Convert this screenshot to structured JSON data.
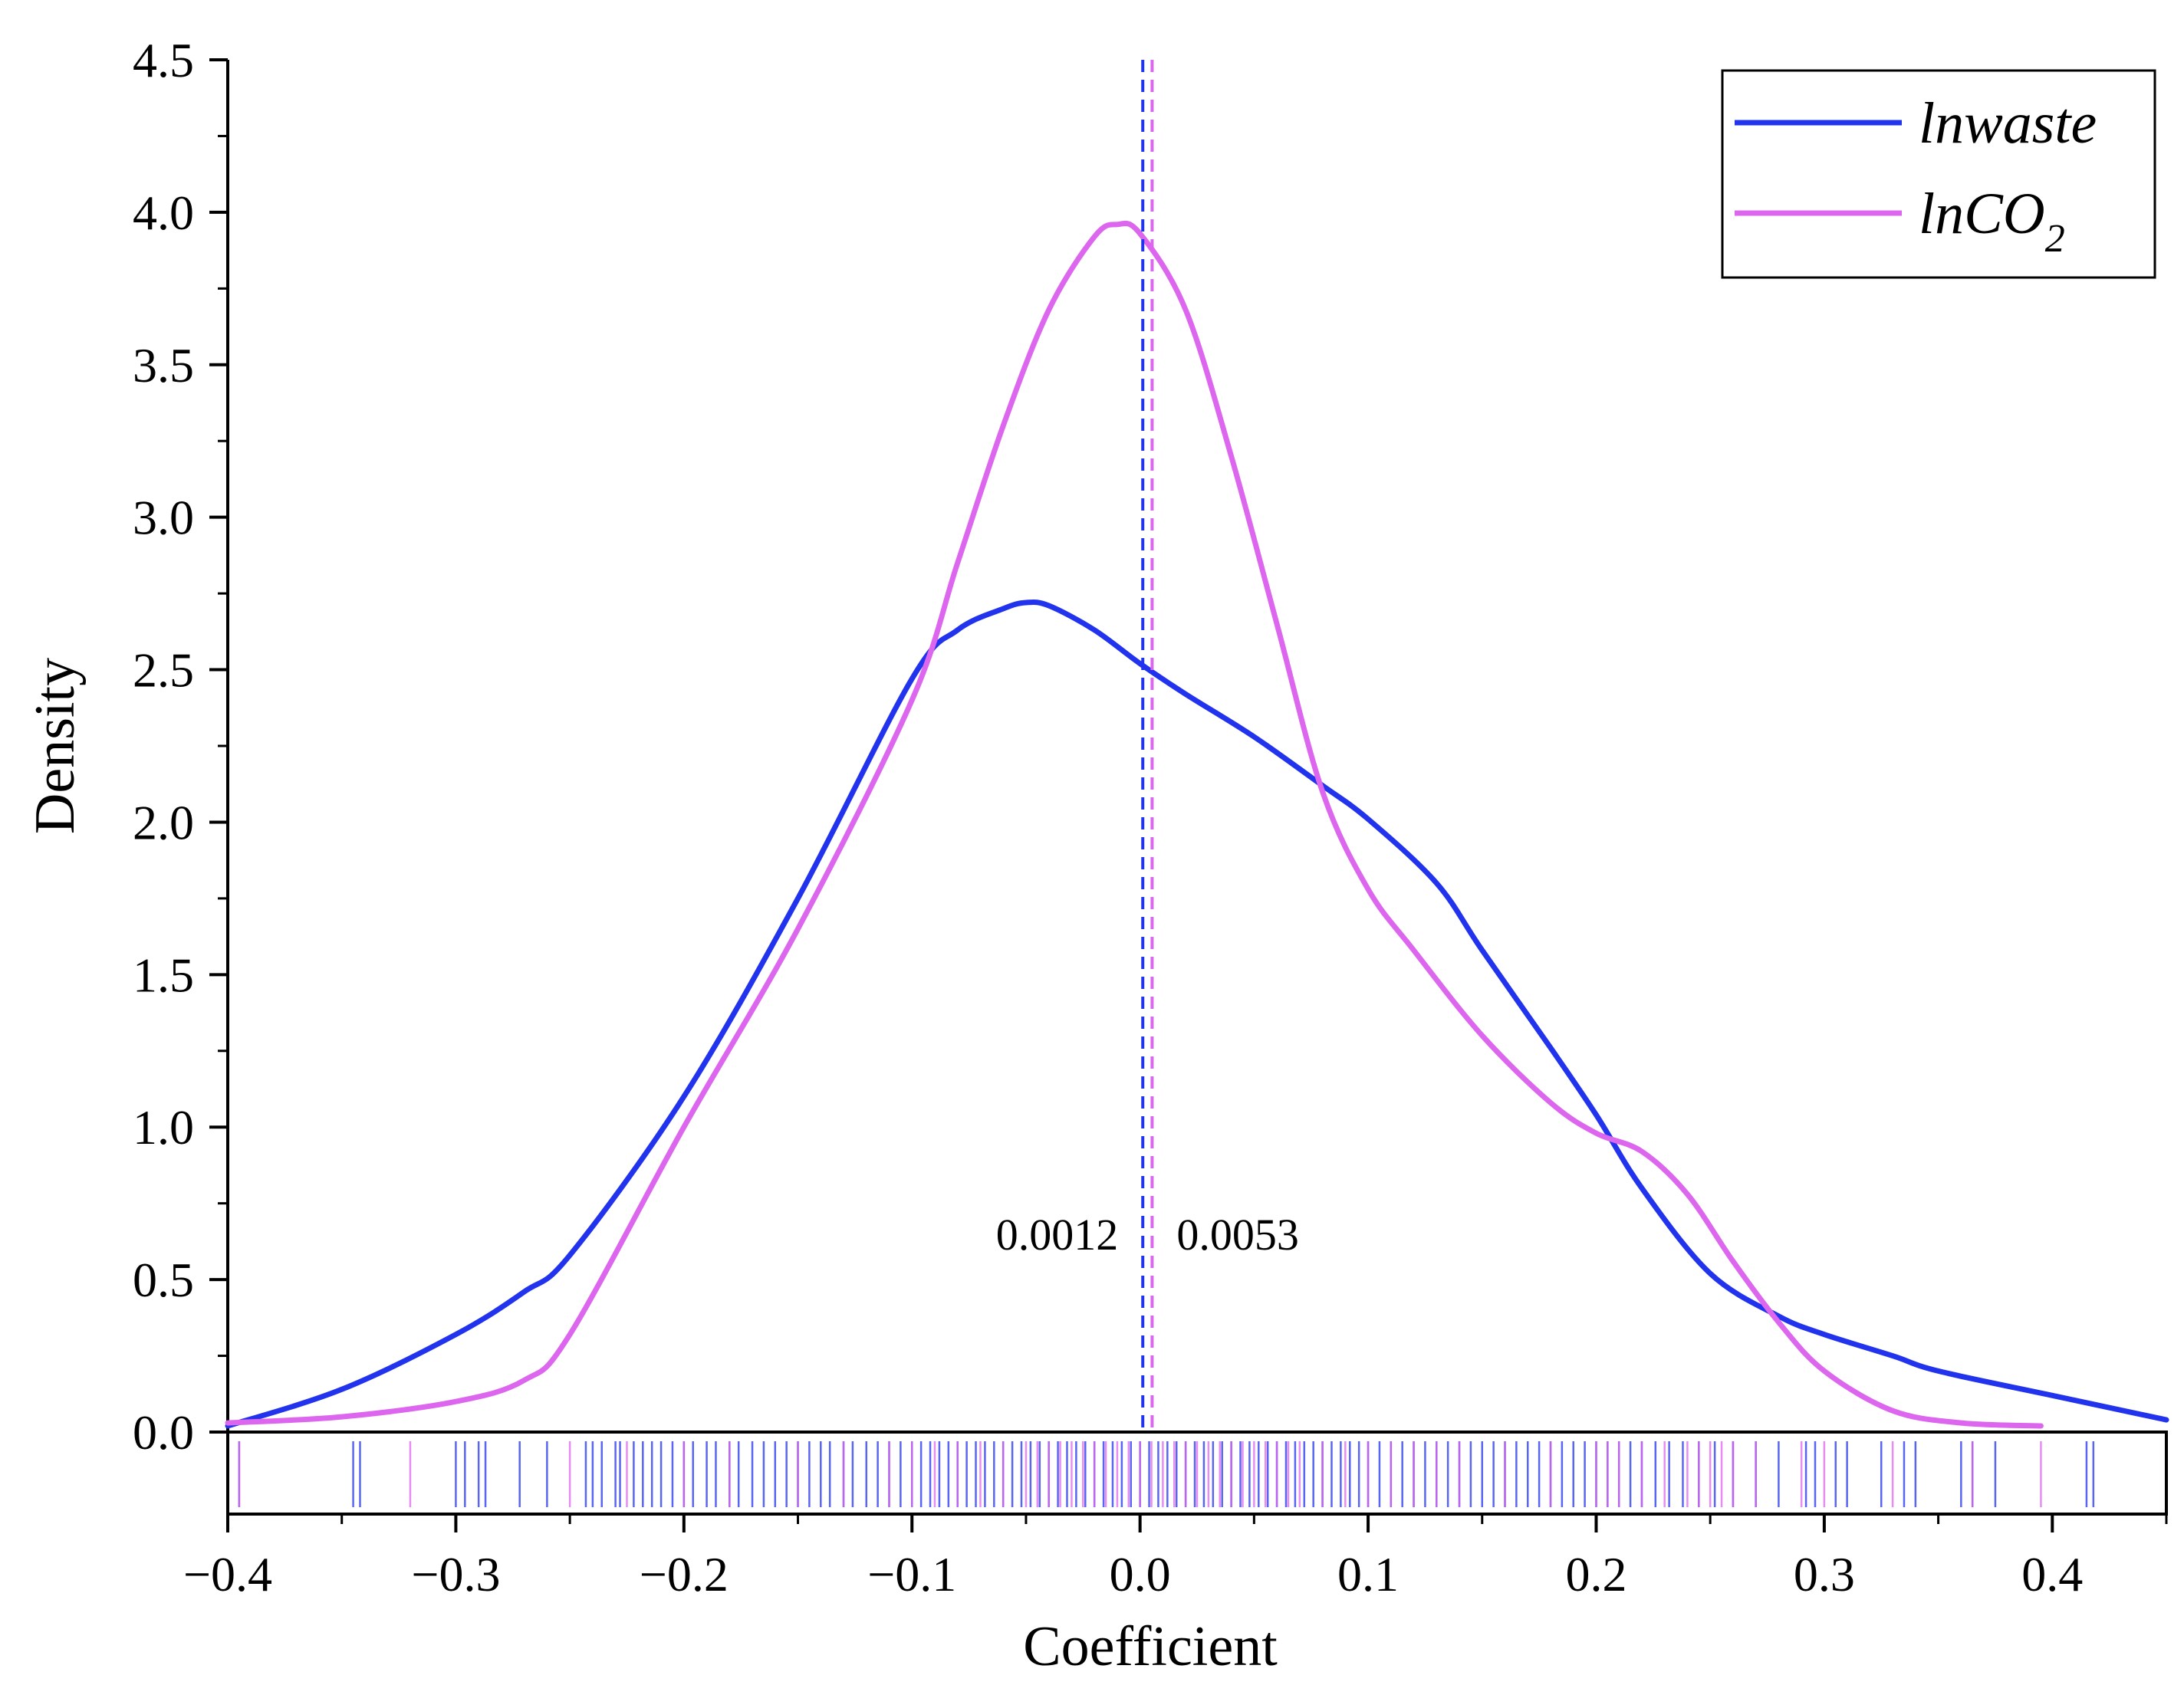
{
  "chart_data": {
    "type": "line",
    "subtype": "kernel-density-with-rug",
    "xlabel": "Coefficient",
    "ylabel": "Density",
    "xlim": [
      -0.4,
      0.45
    ],
    "ylim": [
      0,
      4.5
    ],
    "x_ticks": [
      -0.4,
      -0.3,
      -0.2,
      -0.1,
      0.0,
      0.1,
      0.2,
      0.3,
      0.4
    ],
    "x_tick_labels": [
      "−0.4",
      "−0.3",
      "−0.2",
      "−0.1",
      "0.0",
      "0.1",
      "0.2",
      "0.3",
      "0.4"
    ],
    "y_ticks": [
      0,
      0.5,
      1.0,
      1.5,
      2.0,
      2.5,
      3.0,
      3.5,
      4.0,
      4.5
    ],
    "y_tick_labels": [
      "0.0",
      "0.5",
      "1.0",
      "1.5",
      "2.0",
      "2.5",
      "3.0",
      "3.5",
      "4.0",
      "4.5"
    ],
    "grid": false,
    "legend_position": "top-right",
    "legend": [
      {
        "name": "lnwaste",
        "prefix": "lnwaste",
        "subscript": ""
      },
      {
        "name": "lnCO2",
        "prefix": "lnCO",
        "subscript": "2"
      }
    ],
    "series": [
      {
        "name": "lnwaste",
        "color": "#2233ee",
        "x": [
          -0.4,
          -0.35,
          -0.3,
          -0.27,
          -0.25,
          -0.2,
          -0.15,
          -0.1,
          -0.08,
          -0.06,
          -0.05,
          -0.04,
          -0.02,
          0.0,
          0.02,
          0.05,
          0.08,
          0.1,
          0.13,
          0.15,
          0.18,
          0.2,
          0.22,
          0.25,
          0.28,
          0.3,
          0.33,
          0.35,
          0.4,
          0.45
        ],
        "y": [
          0.02,
          0.14,
          0.32,
          0.46,
          0.58,
          1.1,
          1.75,
          2.47,
          2.63,
          2.7,
          2.72,
          2.71,
          2.63,
          2.52,
          2.42,
          2.28,
          2.12,
          2.01,
          1.8,
          1.58,
          1.26,
          1.04,
          0.8,
          0.52,
          0.38,
          0.32,
          0.25,
          0.2,
          0.12,
          0.04
        ]
      },
      {
        "name": "lnCO2",
        "color": "#dd66ee",
        "x": [
          -0.4,
          -0.35,
          -0.3,
          -0.27,
          -0.25,
          -0.2,
          -0.15,
          -0.1,
          -0.08,
          -0.06,
          -0.04,
          -0.02,
          -0.01,
          0.0,
          0.02,
          0.04,
          0.06,
          0.08,
          0.1,
          0.12,
          0.15,
          0.18,
          0.2,
          0.22,
          0.24,
          0.26,
          0.28,
          0.3,
          0.33,
          0.36,
          0.395
        ],
        "y": [
          0.03,
          0.05,
          0.1,
          0.17,
          0.32,
          1.0,
          1.65,
          2.4,
          2.85,
          3.3,
          3.68,
          3.92,
          3.96,
          3.93,
          3.68,
          3.2,
          2.65,
          2.1,
          1.78,
          1.58,
          1.3,
          1.08,
          0.98,
          0.92,
          0.78,
          0.56,
          0.36,
          0.2,
          0.07,
          0.03,
          0.02
        ]
      }
    ],
    "vlines": [
      {
        "series": "lnwaste",
        "x": 0.0012,
        "label": "0.0012",
        "style": "dashed"
      },
      {
        "series": "lnCO2",
        "x": 0.0053,
        "label": "0.0053",
        "style": "dashed"
      }
    ],
    "rug": {
      "lnwaste": [
        -0.395,
        -0.345,
        -0.342,
        -0.3,
        -0.296,
        -0.29,
        -0.287,
        -0.272,
        -0.26,
        -0.243,
        -0.24,
        -0.236,
        -0.23,
        -0.228,
        -0.222,
        -0.218,
        -0.214,
        -0.21,
        -0.205,
        -0.2,
        -0.196,
        -0.19,
        -0.186,
        -0.18,
        -0.176,
        -0.17,
        -0.165,
        -0.16,
        -0.155,
        -0.15,
        -0.145,
        -0.14,
        -0.136,
        -0.13,
        -0.126,
        -0.12,
        -0.115,
        -0.11,
        -0.105,
        -0.1,
        -0.096,
        -0.092,
        -0.088,
        -0.084,
        -0.08,
        -0.076,
        -0.072,
        -0.068,
        -0.064,
        -0.06,
        -0.056,
        -0.052,
        -0.048,
        -0.044,
        -0.04,
        -0.036,
        -0.032,
        -0.028,
        -0.024,
        -0.02,
        -0.016,
        -0.012,
        -0.008,
        -0.004,
        0.0,
        0.004,
        0.008,
        0.012,
        0.016,
        0.02,
        0.024,
        0.028,
        0.032,
        0.036,
        0.04,
        0.044,
        0.048,
        0.052,
        0.056,
        0.06,
        0.064,
        0.068,
        0.072,
        0.076,
        0.08,
        0.084,
        0.088,
        0.092,
        0.096,
        0.1,
        0.105,
        0.11,
        0.115,
        0.12,
        0.125,
        0.13,
        0.135,
        0.14,
        0.145,
        0.15,
        0.155,
        0.16,
        0.165,
        0.17,
        0.175,
        0.18,
        0.185,
        0.19,
        0.195,
        0.2,
        0.205,
        0.21,
        0.215,
        0.22,
        0.226,
        0.232,
        0.238,
        0.245,
        0.252,
        0.26,
        0.27,
        0.28,
        0.292,
        0.296,
        0.305,
        0.31,
        0.325,
        0.335,
        0.34,
        0.36,
        0.365,
        0.375,
        0.415,
        0.418
      ],
      "lnCO2": [
        -0.395,
        -0.32,
        -0.25,
        -0.225,
        -0.2,
        -0.18,
        -0.15,
        -0.13,
        -0.11,
        -0.1,
        -0.09,
        -0.08,
        -0.07,
        -0.06,
        -0.05,
        -0.045,
        -0.04,
        -0.035,
        -0.03,
        -0.025,
        -0.02,
        -0.015,
        -0.01,
        -0.005,
        0.0,
        0.005,
        0.01,
        0.015,
        0.02,
        0.025,
        0.03,
        0.035,
        0.04,
        0.045,
        0.05,
        0.055,
        0.06,
        0.065,
        0.07,
        0.08,
        0.09,
        0.1,
        0.11,
        0.12,
        0.13,
        0.14,
        0.16,
        0.18,
        0.2,
        0.205,
        0.21,
        0.22,
        0.23,
        0.24,
        0.245,
        0.25,
        0.255,
        0.26,
        0.27,
        0.29,
        0.3,
        0.33,
        0.365,
        0.395
      ]
    }
  }
}
